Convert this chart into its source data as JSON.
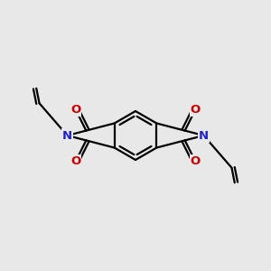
{
  "bg_color": "#e8e8e8",
  "bond_color": "#000000",
  "N_color": "#2222cc",
  "O_color": "#cc0000",
  "bond_width": 1.6,
  "figsize": [
    3.0,
    3.0
  ],
  "dpi": 100,
  "xlim": [
    -2.4,
    2.4
  ],
  "ylim": [
    -1.6,
    1.6
  ]
}
